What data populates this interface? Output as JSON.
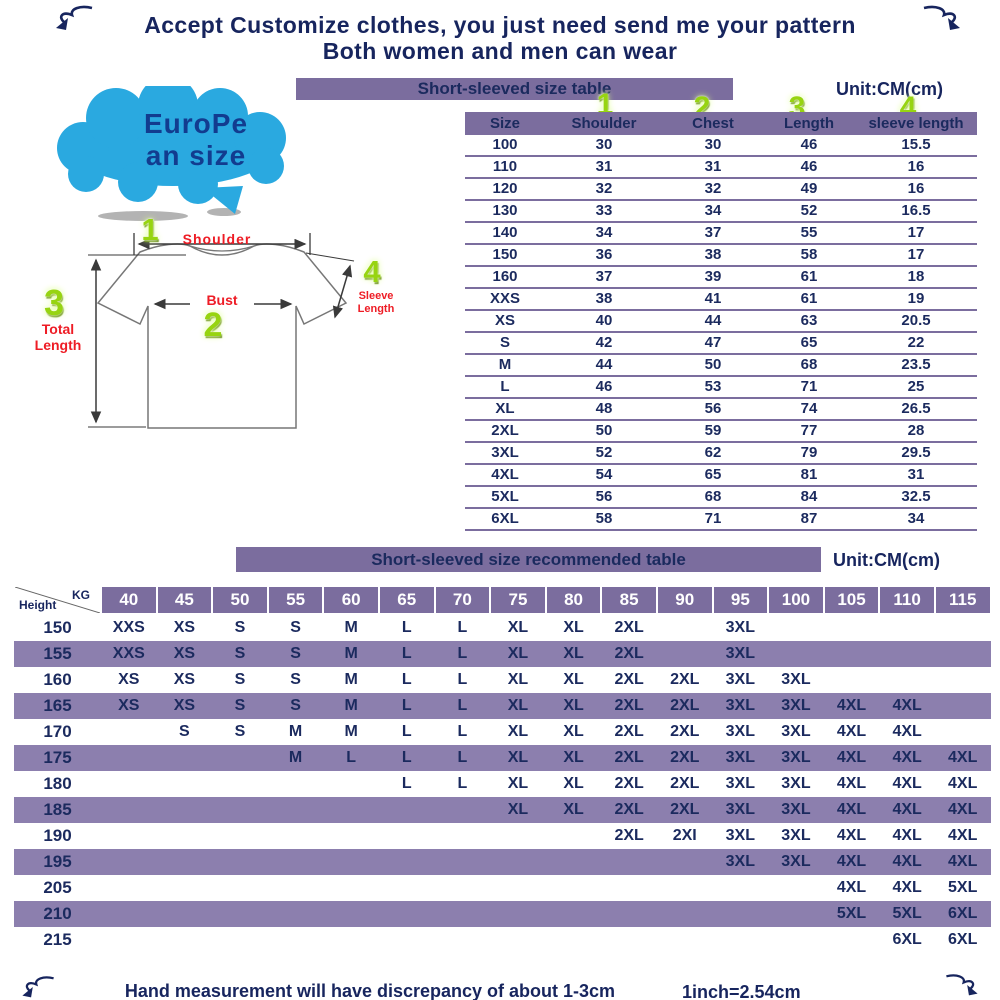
{
  "colors": {
    "purple": "#7b6d9e",
    "stripe_purple": "#8c7fae",
    "navy": "#17255e",
    "green": "#97d411",
    "red": "#ee1c25",
    "cloud_blue": "#2aa9e0"
  },
  "header": {
    "line1": "Accept Customize clothes, you just need send me your pattern",
    "line2": "Both women and men can wear"
  },
  "size_table": {
    "title": "Short-sleeved size table",
    "unit": "Unit:CM(cm)",
    "markers": [
      "1",
      "2",
      "3",
      "4"
    ],
    "columns": [
      "Size",
      "Shoulder",
      "Chest",
      "Length",
      "sleeve length"
    ],
    "rows": [
      [
        "100",
        "30",
        "30",
        "46",
        "15.5"
      ],
      [
        "110",
        "31",
        "31",
        "46",
        "16"
      ],
      [
        "120",
        "32",
        "32",
        "49",
        "16"
      ],
      [
        "130",
        "33",
        "34",
        "52",
        "16.5"
      ],
      [
        "140",
        "34",
        "37",
        "55",
        "17"
      ],
      [
        "150",
        "36",
        "38",
        "58",
        "17"
      ],
      [
        "160",
        "37",
        "39",
        "61",
        "18"
      ],
      [
        "XXS",
        "38",
        "41",
        "61",
        "19"
      ],
      [
        "XS",
        "40",
        "44",
        "63",
        "20.5"
      ],
      [
        "S",
        "42",
        "47",
        "65",
        "22"
      ],
      [
        "M",
        "44",
        "50",
        "68",
        "23.5"
      ],
      [
        "L",
        "46",
        "53",
        "71",
        "25"
      ],
      [
        "XL",
        "48",
        "56",
        "74",
        "26.5"
      ],
      [
        "2XL",
        "50",
        "59",
        "77",
        "28"
      ],
      [
        "3XL",
        "52",
        "62",
        "79",
        "29.5"
      ],
      [
        "4XL",
        "54",
        "65",
        "81",
        "31"
      ],
      [
        "5XL",
        "56",
        "68",
        "84",
        "32.5"
      ],
      [
        "6XL",
        "58",
        "71",
        "87",
        "34"
      ]
    ]
  },
  "diagram": {
    "cloud_line1": "EuroPe",
    "cloud_line2": "an size",
    "shoulder_num": "1",
    "bust_num": "2",
    "length_num": "3",
    "sleeve_num": "4",
    "shoulder_label": "Shoulder",
    "bust_label": "Bust",
    "total_label_line1": "Total",
    "total_label_line2": "Length",
    "sleeve_label_line1": "Sleeve",
    "sleeve_label_line2": "Length"
  },
  "recommend_table": {
    "title": "Short-sleeved size recommended table",
    "unit": "Unit:CM(cm)",
    "corner": {
      "kg": "KG",
      "height": "Height"
    },
    "weight_columns": [
      "40",
      "45",
      "50",
      "55",
      "60",
      "65",
      "70",
      "75",
      "80",
      "85",
      "90",
      "95",
      "100",
      "105",
      "110",
      "115"
    ],
    "rows": [
      {
        "height": "150",
        "cells": [
          "XXS",
          "XS",
          "S",
          "S",
          "M",
          "L",
          "L",
          "XL",
          "XL",
          "2XL",
          "",
          "3XL",
          "",
          "",
          "",
          ""
        ]
      },
      {
        "height": "155",
        "cells": [
          "XXS",
          "XS",
          "S",
          "S",
          "M",
          "L",
          "L",
          "XL",
          "XL",
          "2XL",
          "",
          "3XL",
          "",
          "",
          "",
          ""
        ]
      },
      {
        "height": "160",
        "cells": [
          "XS",
          "XS",
          "S",
          "S",
          "M",
          "L",
          "L",
          "XL",
          "XL",
          "2XL",
          "2XL",
          "3XL",
          "3XL",
          "",
          "",
          ""
        ]
      },
      {
        "height": "165",
        "cells": [
          "XS",
          "XS",
          "S",
          "S",
          "M",
          "L",
          "L",
          "XL",
          "XL",
          "2XL",
          "2XL",
          "3XL",
          "3XL",
          "4XL",
          "4XL",
          ""
        ]
      },
      {
        "height": "170",
        "cells": [
          "",
          "S",
          "S",
          "M",
          "M",
          "L",
          "L",
          "XL",
          "XL",
          "2XL",
          "2XL",
          "3XL",
          "3XL",
          "4XL",
          "4XL",
          ""
        ]
      },
      {
        "height": "175",
        "cells": [
          "",
          "",
          "",
          "M",
          "L",
          "L",
          "L",
          "XL",
          "XL",
          "2XL",
          "2XL",
          "3XL",
          "3XL",
          "4XL",
          "4XL",
          "4XL"
        ]
      },
      {
        "height": "180",
        "cells": [
          "",
          "",
          "",
          "",
          "",
          "L",
          "L",
          "XL",
          "XL",
          "2XL",
          "2XL",
          "3XL",
          "3XL",
          "4XL",
          "4XL",
          "4XL"
        ]
      },
      {
        "height": "185",
        "cells": [
          "",
          "",
          "",
          "",
          "",
          "",
          "",
          "XL",
          "XL",
          "2XL",
          "2XL",
          "3XL",
          "3XL",
          "4XL",
          "4XL",
          "4XL"
        ]
      },
      {
        "height": "190",
        "cells": [
          "",
          "",
          "",
          "",
          "",
          "",
          "",
          "",
          "",
          "2XL",
          "2XI",
          "3XL",
          "3XL",
          "4XL",
          "4XL",
          "4XL"
        ]
      },
      {
        "height": "195",
        "cells": [
          "",
          "",
          "",
          "",
          "",
          "",
          "",
          "",
          "",
          "",
          "",
          "3XL",
          "3XL",
          "4XL",
          "4XL",
          "4XL"
        ]
      },
      {
        "height": "205",
        "cells": [
          "",
          "",
          "",
          "",
          "",
          "",
          "",
          "",
          "",
          "",
          "",
          "",
          "",
          "4XL",
          "4XL",
          "5XL"
        ]
      },
      {
        "height": "210",
        "cells": [
          "",
          "",
          "",
          "",
          "",
          "",
          "",
          "",
          "",
          "",
          "",
          "",
          "",
          "5XL",
          "5XL",
          "6XL"
        ]
      },
      {
        "height": "215",
        "cells": [
          "",
          "",
          "",
          "",
          "",
          "",
          "",
          "",
          "",
          "",
          "",
          "",
          "",
          "",
          "6XL",
          "6XL"
        ]
      }
    ]
  },
  "footer": {
    "note": "Hand measurement will have discrepancy of about  1-3cm",
    "conversion": "1inch=2.54cm"
  }
}
